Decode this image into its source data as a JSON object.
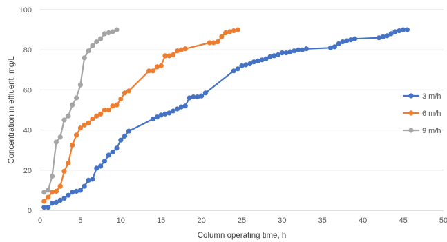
{
  "chart_data": {
    "type": "line",
    "title": "",
    "xlabel": "Column operating time, h",
    "ylabel": "Concentration in effluent, mg/L",
    "xlim": [
      0,
      50
    ],
    "ylim": [
      0,
      100
    ],
    "xticks": [
      "0",
      "5",
      "10",
      "15",
      "20",
      "25",
      "30",
      "35",
      "40",
      "45",
      "50"
    ],
    "yticks": [
      "0",
      "20",
      "40",
      "60",
      "80",
      "100"
    ],
    "grid": "horizontal",
    "legend_position": "right",
    "series": [
      {
        "name": "3 m/h",
        "color": "#4472C4",
        "points": [
          [
            0.5,
            1.5
          ],
          [
            1.0,
            1.5
          ],
          [
            1.5,
            3.5
          ],
          [
            2.0,
            4
          ],
          [
            2.5,
            5
          ],
          [
            3.0,
            6
          ],
          [
            3.5,
            7.5
          ],
          [
            4.0,
            9
          ],
          [
            4.5,
            9.5
          ],
          [
            5.0,
            10
          ],
          [
            5.5,
            12
          ],
          [
            6.0,
            15
          ],
          [
            6.5,
            15.5
          ],
          [
            7.0,
            21
          ],
          [
            7.5,
            22
          ],
          [
            8.0,
            24.5
          ],
          [
            8.5,
            27.5
          ],
          [
            9.0,
            29
          ],
          [
            9.5,
            31
          ],
          [
            10.0,
            35
          ],
          [
            10.5,
            37
          ],
          [
            11.0,
            39.5
          ],
          [
            14.0,
            45.5
          ],
          [
            14.5,
            46.5
          ],
          [
            15.0,
            47.5
          ],
          [
            15.5,
            48
          ],
          [
            16.0,
            48.5
          ],
          [
            16.5,
            49.5
          ],
          [
            17.0,
            50.5
          ],
          [
            17.5,
            51.5
          ],
          [
            18.0,
            52
          ],
          [
            18.5,
            56
          ],
          [
            19.0,
            56.5
          ],
          [
            19.5,
            56.5
          ],
          [
            20.0,
            57
          ],
          [
            20.5,
            58.5
          ],
          [
            24.0,
            69.5
          ],
          [
            24.5,
            70.5
          ],
          [
            25.0,
            72
          ],
          [
            25.5,
            72.5
          ],
          [
            26.0,
            73
          ],
          [
            26.5,
            74
          ],
          [
            27.0,
            74.5
          ],
          [
            27.5,
            75
          ],
          [
            28.0,
            75.5
          ],
          [
            28.5,
            76.5
          ],
          [
            29.0,
            77
          ],
          [
            29.5,
            77.5
          ],
          [
            30.0,
            78.5
          ],
          [
            30.5,
            78.5
          ],
          [
            31.0,
            79
          ],
          [
            31.5,
            79.5
          ],
          [
            32.0,
            80
          ],
          [
            32.5,
            80
          ],
          [
            33.0,
            80.5
          ],
          [
            36.0,
            81
          ],
          [
            36.5,
            81.5
          ],
          [
            37.0,
            83
          ],
          [
            37.5,
            84
          ],
          [
            38.0,
            84.5
          ],
          [
            38.5,
            85
          ],
          [
            39.0,
            85.5
          ],
          [
            42.0,
            86
          ],
          [
            42.5,
            86.5
          ],
          [
            43.0,
            87
          ],
          [
            43.5,
            88
          ],
          [
            44.0,
            89
          ],
          [
            44.5,
            89.5
          ],
          [
            45.0,
            90
          ],
          [
            45.5,
            90
          ]
        ]
      },
      {
        "name": "6 m/h",
        "color": "#ED7D31",
        "points": [
          [
            0.5,
            4.5
          ],
          [
            1.0,
            6.5
          ],
          [
            1.5,
            9
          ],
          [
            2.0,
            9.5
          ],
          [
            2.5,
            12
          ],
          [
            3.0,
            19.5
          ],
          [
            3.5,
            23.5
          ],
          [
            4.0,
            32.5
          ],
          [
            4.5,
            37.5
          ],
          [
            5.0,
            41
          ],
          [
            5.5,
            42.5
          ],
          [
            6.0,
            43.5
          ],
          [
            6.5,
            45.5
          ],
          [
            7.0,
            47
          ],
          [
            7.5,
            48
          ],
          [
            8.0,
            50
          ],
          [
            8.5,
            50
          ],
          [
            9.0,
            52
          ],
          [
            9.5,
            52.5
          ],
          [
            10.0,
            55.5
          ],
          [
            10.5,
            58.5
          ],
          [
            11.0,
            59.5
          ],
          [
            13.5,
            69.5
          ],
          [
            14.0,
            69.5
          ],
          [
            14.5,
            71.5
          ],
          [
            15.0,
            72
          ],
          [
            15.5,
            77
          ],
          [
            16.0,
            77
          ],
          [
            16.5,
            77.5
          ],
          [
            17.0,
            79.5
          ],
          [
            17.5,
            80
          ],
          [
            18.0,
            80.5
          ],
          [
            21.0,
            83.5
          ],
          [
            21.5,
            83.5
          ],
          [
            22.0,
            84
          ],
          [
            22.5,
            86.5
          ],
          [
            23.0,
            88.5
          ],
          [
            23.5,
            89
          ],
          [
            24.0,
            89.5
          ],
          [
            24.5,
            90
          ]
        ]
      },
      {
        "name": "9 m/h",
        "color": "#A5A5A5",
        "points": [
          [
            0.5,
            9
          ],
          [
            1.0,
            10
          ],
          [
            1.5,
            17
          ],
          [
            2.0,
            34
          ],
          [
            2.5,
            36.5
          ],
          [
            3.0,
            45
          ],
          [
            3.5,
            47
          ],
          [
            4.0,
            52.5
          ],
          [
            4.5,
            56
          ],
          [
            5.0,
            62.5
          ],
          [
            5.5,
            76
          ],
          [
            6.0,
            79.5
          ],
          [
            6.5,
            82
          ],
          [
            7.0,
            84
          ],
          [
            7.5,
            85.5
          ],
          [
            8.0,
            88
          ],
          [
            8.5,
            88.5
          ],
          [
            9.0,
            89
          ],
          [
            9.5,
            90
          ]
        ]
      }
    ]
  }
}
